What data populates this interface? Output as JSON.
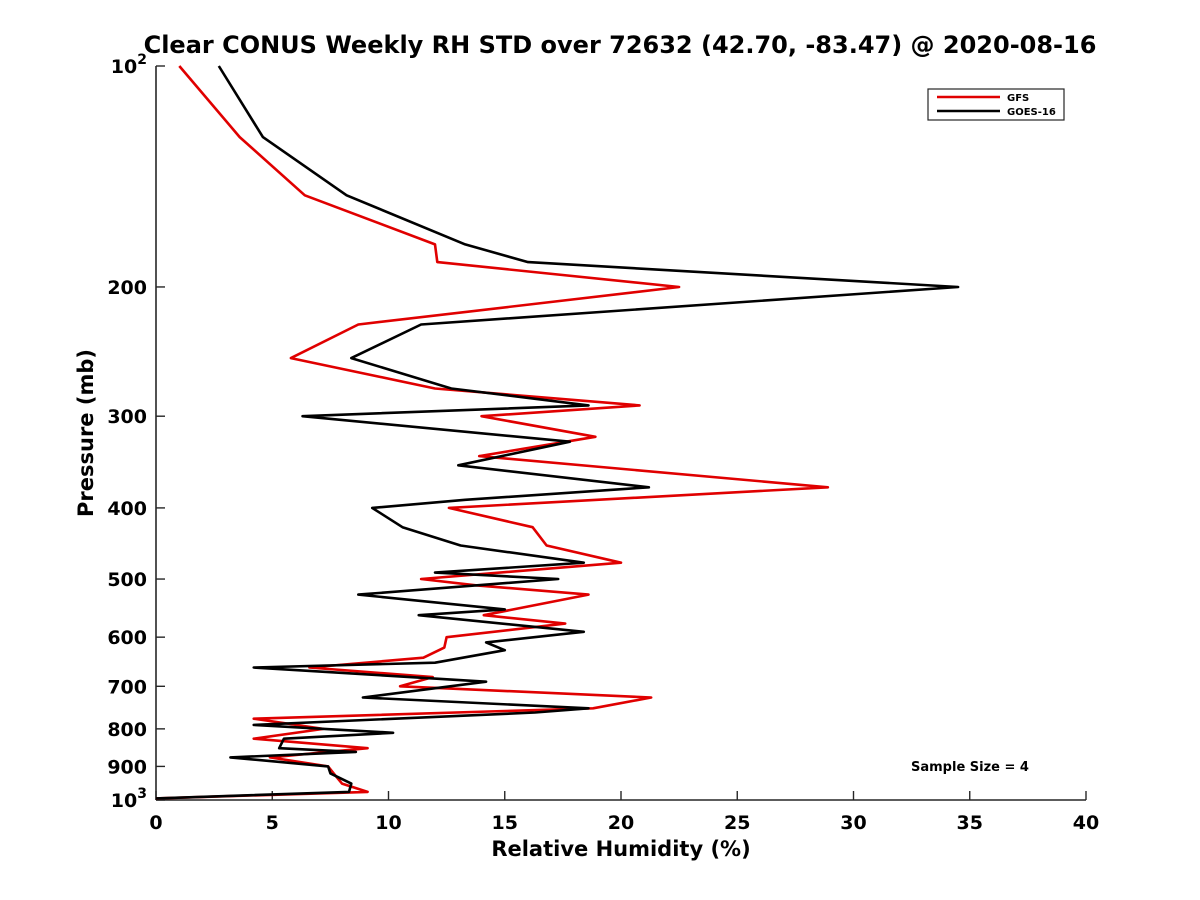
{
  "chart_data": {
    "type": "line",
    "title": "Clear CONUS Weekly RH STD over 72632 (42.70, -83.47) @ 2020-08-16",
    "xlabel": "Relative Humidity (%)",
    "ylabel": "Pressure (mb)",
    "xlim": [
      0,
      40
    ],
    "ylim": [
      100,
      1000
    ],
    "y_scale": "log",
    "y_reversed": true,
    "grid": false,
    "legend_position": "top-right",
    "x_ticks": [
      "0",
      "5",
      "10",
      "15",
      "20",
      "25",
      "30",
      "35",
      "40"
    ],
    "y_ticks": [
      {
        "value": 100,
        "base": "10",
        "exp": "2"
      },
      {
        "value": 200,
        "label": "200"
      },
      {
        "value": 300,
        "label": "300"
      },
      {
        "value": 400,
        "label": "400"
      },
      {
        "value": 500,
        "label": "500"
      },
      {
        "value": 600,
        "label": "600"
      },
      {
        "value": 700,
        "label": "700"
      },
      {
        "value": 800,
        "label": "800"
      },
      {
        "value": 900,
        "label": "900"
      },
      {
        "value": 1000,
        "base": "10",
        "exp": "3"
      }
    ],
    "annotation": "Sample Size = 4",
    "series": [
      {
        "name": "GFS",
        "color": "#e00000",
        "points": [
          [
            1.0,
            100
          ],
          [
            3.6,
            125
          ],
          [
            6.4,
            150
          ],
          [
            12.0,
            175
          ],
          [
            12.1,
            185
          ],
          [
            22.5,
            200
          ],
          [
            8.7,
            225
          ],
          [
            5.8,
            250
          ],
          [
            12.0,
            275
          ],
          [
            20.8,
            290
          ],
          [
            14.0,
            300
          ],
          [
            18.9,
            320
          ],
          [
            13.9,
            340
          ],
          [
            28.9,
            375
          ],
          [
            12.6,
            400
          ],
          [
            16.2,
            425
          ],
          [
            16.8,
            450
          ],
          [
            20.0,
            475
          ],
          [
            11.4,
            500
          ],
          [
            13.8,
            510
          ],
          [
            18.6,
            525
          ],
          [
            14.1,
            560
          ],
          [
            17.6,
            575
          ],
          [
            12.5,
            600
          ],
          [
            12.4,
            620
          ],
          [
            11.5,
            640
          ],
          [
            6.6,
            660
          ],
          [
            11.9,
            680
          ],
          [
            10.5,
            700
          ],
          [
            21.3,
            725
          ],
          [
            18.8,
            750
          ],
          [
            4.2,
            775
          ],
          [
            7.2,
            800
          ],
          [
            4.2,
            825
          ],
          [
            9.1,
            850
          ],
          [
            4.9,
            875
          ],
          [
            7.4,
            900
          ],
          [
            7.7,
            925
          ],
          [
            8.0,
            950
          ],
          [
            9.1,
            975
          ],
          [
            0.0,
            995
          ]
        ]
      },
      {
        "name": "GOES-16",
        "color": "#000000",
        "points": [
          [
            2.7,
            100
          ],
          [
            4.6,
            125
          ],
          [
            8.2,
            150
          ],
          [
            13.3,
            175
          ],
          [
            16.0,
            185
          ],
          [
            34.5,
            200
          ],
          [
            11.4,
            225
          ],
          [
            8.4,
            250
          ],
          [
            12.7,
            275
          ],
          [
            18.6,
            290
          ],
          [
            6.3,
            300
          ],
          [
            17.8,
            325
          ],
          [
            13.0,
            350
          ],
          [
            21.2,
            375
          ],
          [
            13.3,
            390
          ],
          [
            9.3,
            400
          ],
          [
            10.6,
            425
          ],
          [
            13.1,
            450
          ],
          [
            18.4,
            475
          ],
          [
            12.0,
            490
          ],
          [
            17.3,
            500
          ],
          [
            8.7,
            525
          ],
          [
            15.0,
            550
          ],
          [
            11.3,
            560
          ],
          [
            18.4,
            590
          ],
          [
            14.2,
            610
          ],
          [
            15.0,
            625
          ],
          [
            12.0,
            650
          ],
          [
            4.2,
            660
          ],
          [
            14.2,
            690
          ],
          [
            8.9,
            725
          ],
          [
            18.6,
            750
          ],
          [
            16.3,
            760
          ],
          [
            4.2,
            790
          ],
          [
            10.2,
            810
          ],
          [
            5.5,
            825
          ],
          [
            5.3,
            850
          ],
          [
            8.6,
            860
          ],
          [
            3.2,
            875
          ],
          [
            7.4,
            900
          ],
          [
            7.5,
            920
          ],
          [
            8.4,
            950
          ],
          [
            8.3,
            975
          ],
          [
            0.0,
            995
          ]
        ]
      }
    ]
  }
}
